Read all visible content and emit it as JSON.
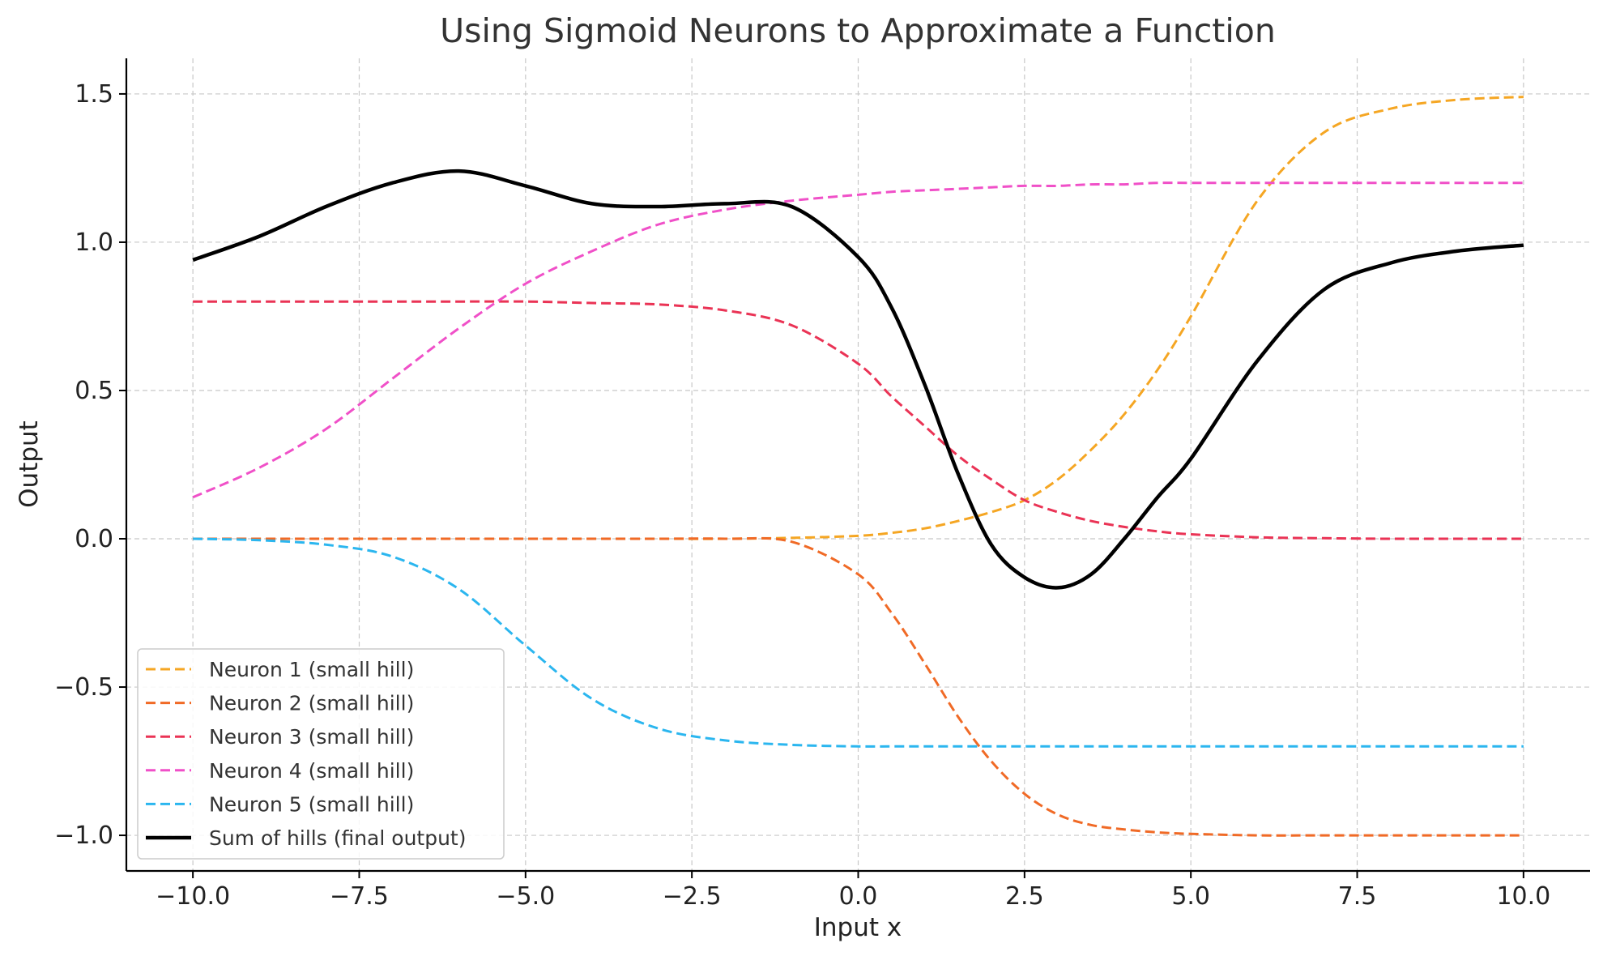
{
  "chart_data": {
    "type": "line",
    "title": "Using Sigmoid Neurons to Approximate a Function",
    "xlabel": "Input x",
    "ylabel": "Output",
    "xlim": [
      -11,
      11
    ],
    "ylim": [
      -1.12,
      1.62
    ],
    "xticks": [
      -10.0,
      -7.5,
      -5.0,
      -2.5,
      0.0,
      2.5,
      5.0,
      7.5,
      10.0
    ],
    "xtick_labels": [
      "−10.0",
      "−7.5",
      "−5.0",
      "−2.5",
      "0.0",
      "2.5",
      "5.0",
      "7.5",
      "10.0"
    ],
    "yticks": [
      -1.0,
      -0.5,
      0.0,
      0.5,
      1.0,
      1.5
    ],
    "ytick_labels": [
      "−1.0",
      "−0.5",
      "0.0",
      "0.5",
      "1.0",
      "1.5"
    ],
    "grid": true,
    "legend_position": "lower-left",
    "x": [
      -10,
      -9,
      -8,
      -7,
      -6,
      -5,
      -4,
      -3,
      -2,
      -1,
      0,
      0.5,
      1,
      1.5,
      2,
      2.5,
      3,
      3.5,
      4,
      4.5,
      5,
      6,
      7,
      8,
      9,
      10
    ],
    "series": [
      {
        "name": "Neuron 1 (small hill)",
        "color": "#f5a623",
        "style": "dashed",
        "values": [
          0.0,
          0.0,
          0.0,
          0.0,
          0.0,
          0.0,
          0.0,
          0.0,
          0.0,
          0.003,
          0.01,
          0.02,
          0.035,
          0.06,
          0.09,
          0.13,
          0.2,
          0.3,
          0.42,
          0.57,
          0.75,
          1.14,
          1.37,
          1.45,
          1.48,
          1.49
        ]
      },
      {
        "name": "Neuron 2 (small hill)",
        "color": "#f06a26",
        "style": "dashed",
        "values": [
          0.0,
          0.0,
          0.0,
          0.0,
          0.0,
          0.0,
          0.0,
          0.0,
          0.0,
          -0.01,
          -0.12,
          -0.25,
          -0.42,
          -0.6,
          -0.75,
          -0.86,
          -0.93,
          -0.965,
          -0.98,
          -0.99,
          -0.995,
          -1.0,
          -1.0,
          -1.0,
          -1.0,
          -1.0
        ]
      },
      {
        "name": "Neuron 3 (small hill)",
        "color": "#ea3355",
        "style": "dashed",
        "values": [
          0.8,
          0.8,
          0.8,
          0.8,
          0.8,
          0.8,
          0.795,
          0.79,
          0.77,
          0.72,
          0.59,
          0.48,
          0.38,
          0.28,
          0.2,
          0.13,
          0.09,
          0.06,
          0.04,
          0.025,
          0.015,
          0.005,
          0.002,
          0.0,
          0.0,
          0.0
        ]
      },
      {
        "name": "Neuron 4 (small hill)",
        "color": "#f050c8",
        "style": "dashed",
        "values": [
          0.14,
          0.24,
          0.37,
          0.54,
          0.71,
          0.86,
          0.97,
          1.06,
          1.11,
          1.14,
          1.16,
          1.17,
          1.175,
          1.18,
          1.185,
          1.19,
          1.19,
          1.195,
          1.195,
          1.2,
          1.2,
          1.2,
          1.2,
          1.2,
          1.2,
          1.2
        ]
      },
      {
        "name": "Neuron 5 (small hill)",
        "color": "#2bb6ef",
        "style": "dashed",
        "values": [
          0.0,
          -0.005,
          -0.02,
          -0.06,
          -0.17,
          -0.36,
          -0.54,
          -0.64,
          -0.68,
          -0.695,
          -0.7,
          -0.7,
          -0.7,
          -0.7,
          -0.7,
          -0.7,
          -0.7,
          -0.7,
          -0.7,
          -0.7,
          -0.7,
          -0.7,
          -0.7,
          -0.7,
          -0.7,
          -0.7
        ]
      },
      {
        "name": "Sum of hills (final output)",
        "color": "#000000",
        "style": "solid",
        "values": [
          0.94,
          1.02,
          1.12,
          1.2,
          1.24,
          1.19,
          1.13,
          1.12,
          1.13,
          1.12,
          0.95,
          0.78,
          0.52,
          0.22,
          -0.02,
          -0.13,
          -0.165,
          -0.12,
          0.0,
          0.14,
          0.27,
          0.6,
          0.84,
          0.93,
          0.97,
          0.99
        ]
      }
    ]
  }
}
